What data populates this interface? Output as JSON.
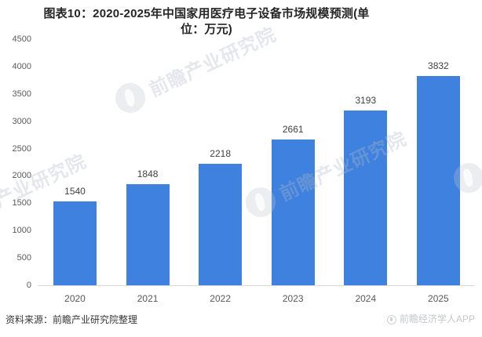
{
  "header": {
    "title": "图表10：2020-2025年中国家用医疗电子设备市场规模预测(单位：万元)"
  },
  "chart_data": {
    "type": "bar",
    "title": "图表10：2020-2025年中国家用医疗电子设备市场规模预测",
    "unit": "万元",
    "categories": [
      "2020",
      "2021",
      "2022",
      "2023",
      "2024",
      "2025"
    ],
    "values": [
      1540,
      1848,
      2218,
      2661,
      3193,
      3832
    ],
    "xlabel": "",
    "ylabel": "",
    "ylim": [
      0,
      4500
    ],
    "ytick_step": 500,
    "grid": false,
    "legend": "none",
    "value_labels": true,
    "bar_color": "#3E81DE"
  },
  "watermark": {
    "text": "前瞻产业研究院"
  },
  "footer": {
    "source": "资料来源：前瞻产业研究院整理",
    "brand": "前瞻经济学人APP"
  },
  "colors": {
    "bar": "#3E81DE",
    "axis_line": "#d9d9d9",
    "tick_text": "#595959",
    "value_text": "#404040",
    "title_text": "#262626",
    "source_text": "#383838",
    "brand_text": "#c4c7ca"
  }
}
